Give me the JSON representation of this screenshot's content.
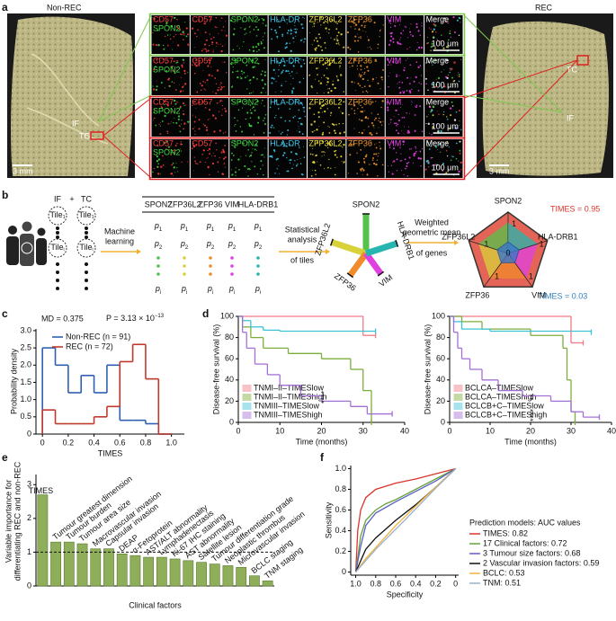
{
  "panel_labels": [
    "a",
    "b",
    "c",
    "d",
    "e",
    "f"
  ],
  "panel_a": {
    "left_title": "Non-REC",
    "right_title": "REC",
    "left_regions": [
      "IF",
      "TC"
    ],
    "right_regions": [
      "TC",
      "IF"
    ],
    "tissue_scale": "3 mm",
    "merged_label": [
      "CD57 -",
      "SPON2"
    ],
    "column_labels": [
      "CD57",
      "SPON2",
      "HLA-DR",
      "ZFP36L2",
      "ZFP36",
      "VIM",
      "Merge"
    ],
    "image_scale": "100 μm"
  },
  "panel_b": {
    "regions": [
      "IF",
      "TC"
    ],
    "plus": "+",
    "tile_base": "Tile",
    "tile_subs": [
      "1",
      "i"
    ],
    "step_labels": [
      [
        "Machine",
        "learning"
      ],
      [
        "Statistical",
        "analysis",
        "of tiles"
      ],
      [
        "Weighted",
        "geometric mean",
        "of genes"
      ]
    ],
    "genes": [
      "SPON2",
      "ZFP36L2",
      "ZFP36",
      "VIM",
      "HLA-DRB1"
    ],
    "row_base": "p",
    "row_subs": [
      "1",
      "2",
      "i"
    ],
    "radar_labels": [
      "TIMES = 0.95",
      "TIMES = 0.03"
    ],
    "radar_ticks": [
      "1",
      "0"
    ]
  },
  "chart_data": [
    {
      "type": "histogram",
      "annotations": [
        "MD = 0.375"
      ],
      "p_value": {
        "text": "P = 3.13 × 10",
        "exponent": "−13"
      },
      "bins": [
        0,
        0.1,
        0.2,
        0.3,
        0.4,
        0.5,
        0.6,
        0.7,
        0.8,
        0.9,
        1.0
      ],
      "series": [
        {
          "name": "Non-REC (n = 91)",
          "color": "#2f5fb3",
          "values": [
            2.5,
            2.0,
            1.2,
            1.7,
            1.2,
            2.0,
            0.4,
            0.4,
            0.3,
            0
          ]
        },
        {
          "name": "REC (n = 72)",
          "color": "#c0392b",
          "values": [
            0.7,
            0.3,
            0.3,
            0.3,
            0.5,
            0.8,
            2.1,
            2.6,
            1.6,
            0
          ]
        }
      ],
      "xlabel": "TIMES",
      "ylabel": "Probability density",
      "xlim": [
        -0.05,
        1.1
      ],
      "ylim": [
        0,
        3.05
      ],
      "xticks": [
        0,
        0.2,
        0.4,
        0.6,
        0.8,
        {
          "value": 1,
          "label": "1.0"
        }
      ],
      "yticks": [
        0,
        0.5,
        {
          "value": 1,
          "label": "1.0"
        },
        1.5,
        {
          "value": 2,
          "label": "2.0"
        },
        2.5,
        {
          "value": 3,
          "label": "3.0"
        }
      ]
    },
    {
      "type": "survival",
      "xlabel": "Time (months)",
      "ylabel": "Disease-free survival (%)",
      "annotations": [
        "****"
      ],
      "xlim": [
        0,
        40
      ],
      "ylim": [
        0,
        100
      ],
      "xticks": [
        0,
        10,
        20,
        30,
        40
      ],
      "yticks": [
        0,
        20,
        40,
        60,
        80,
        100
      ],
      "series": [
        {
          "name": "TNMI–II–TIMESlow",
          "color": "#f07a85",
          "x": [
            0,
            30,
            33
          ],
          "values": [
            100,
            82,
            82
          ]
        },
        {
          "name": "TNMI–II–TIMEShigh",
          "color": "#7cae3c",
          "x": [
            0,
            1,
            3,
            6,
            12,
            20,
            27,
            30,
            32
          ],
          "values": [
            100,
            90,
            80,
            70,
            65,
            60,
            50,
            30,
            0
          ]
        },
        {
          "name": "TNMIII–TIMESlow",
          "color": "#3cc3d3",
          "x": [
            0,
            1,
            3,
            6,
            10,
            33
          ],
          "values": [
            100,
            96,
            90,
            87,
            86,
            86
          ]
        },
        {
          "name": "TNMIII–TIMEShigh",
          "color": "#a56fd8",
          "x": [
            0,
            1,
            2,
            4,
            7,
            10,
            15,
            20,
            27,
            31,
            37
          ],
          "values": [
            100,
            85,
            70,
            55,
            45,
            35,
            25,
            20,
            15,
            8,
            8
          ]
        }
      ]
    },
    {
      "type": "survival",
      "xlabel": "Time (months)",
      "ylabel": "Disease-free survival (%)",
      "annotations": [
        "**",
        "****"
      ],
      "xlim": [
        0,
        40
      ],
      "ylim": [
        0,
        100
      ],
      "xticks": [
        0,
        10,
        20,
        30,
        40
      ],
      "yticks": [
        0,
        20,
        40,
        60,
        80,
        100
      ],
      "series": [
        {
          "name": "BCLCA–TIMESlow",
          "color": "#f07a85",
          "x": [
            0,
            30,
            33
          ],
          "values": [
            100,
            75,
            75
          ]
        },
        {
          "name": "BCLCA–TIMEShigh",
          "color": "#7cae3c",
          "x": [
            0,
            3,
            8,
            20,
            28,
            29,
            30,
            31
          ],
          "values": [
            100,
            95,
            88,
            82,
            70,
            40,
            10,
            0
          ]
        },
        {
          "name": "BCLCB+C–TIMESlow",
          "color": "#3cc3d3",
          "x": [
            0,
            1,
            3,
            10,
            35
          ],
          "values": [
            100,
            95,
            88,
            86,
            85
          ]
        },
        {
          "name": "BCLCB+C–TIMEShigh",
          "color": "#a56fd8",
          "x": [
            0,
            1,
            2,
            3,
            5,
            8,
            12,
            18,
            25,
            30,
            33,
            37
          ],
          "values": [
            100,
            85,
            70,
            60,
            50,
            40,
            30,
            25,
            20,
            10,
            5,
            5
          ]
        }
      ]
    },
    {
      "type": "bar",
      "ylabel": [
        "Variable importance for",
        "differentiating REC and non-REC"
      ],
      "xlabel": "Clinical factors",
      "color": "#8fae5a",
      "reference_line": 1,
      "categories": [
        "TIMES",
        "Tumour greatest dimension",
        "Tumour burden",
        "Tumour area size",
        "Macrovascular invasion",
        "Capsular invasion",
        "DEAP",
        "α-Fetoprotein",
        "AST/ALT abnormality",
        "Lymphadenectasis",
        "Ki-67 IHC staining",
        "AST abnormality",
        "Satellite lesion",
        "Tumour differentiation grade",
        "Neoplastic thrombus",
        "Microvascular invasion",
        "BCLC staging",
        "TNM staging"
      ],
      "values": [
        2.7,
        1.3,
        1.3,
        1.25,
        1.1,
        1.1,
        0.95,
        0.9,
        0.85,
        0.85,
        0.8,
        0.75,
        0.7,
        0.65,
        0.6,
        0.55,
        0.3,
        0.15
      ],
      "ylim": [
        0,
        3.3
      ],
      "yticks": [
        0,
        1,
        2,
        3
      ]
    },
    {
      "type": "line",
      "xlabel": "Specificity",
      "ylabel": "Sensitivity",
      "legend_title": "Prediction models: AUC values",
      "xlim": [
        1.05,
        -0.03
      ],
      "ylim": [
        -0.03,
        1.03
      ],
      "xticks": [
        {
          "value": 1,
          "label": "1.0"
        },
        0.8,
        0.6,
        0.4,
        0.2,
        0
      ],
      "yticks": [
        0,
        0.2,
        0.4,
        0.6,
        0.8,
        {
          "value": 1,
          "label": "1.0"
        }
      ],
      "series": [
        {
          "name": "TIMES: 0.82",
          "color": "#d9342b",
          "x": [
            1,
            0.98,
            0.95,
            0.9,
            0.8,
            0.6,
            0.4,
            0.2,
            0
          ],
          "values": [
            0,
            0.4,
            0.6,
            0.72,
            0.8,
            0.86,
            0.9,
            0.95,
            1
          ]
        },
        {
          "name": "17 Clinical factors: 0.72",
          "color": "#66a33a",
          "x": [
            1,
            0.95,
            0.9,
            0.8,
            0.7,
            0.6,
            0.4,
            0.2,
            0
          ],
          "values": [
            0,
            0.35,
            0.5,
            0.6,
            0.66,
            0.7,
            0.8,
            0.9,
            1
          ]
        },
        {
          "name": "3 Tumour size factors: 0.68",
          "color": "#5a5fc8",
          "x": [
            1,
            0.95,
            0.9,
            0.8,
            0.6,
            0.4,
            0.2,
            0
          ],
          "values": [
            0,
            0.25,
            0.45,
            0.57,
            0.68,
            0.78,
            0.88,
            1
          ]
        },
        {
          "name": "2 Vascular invasion factors: 0.59",
          "color": "#111111",
          "x": [
            1,
            0.9,
            0.8,
            0.6,
            0.4,
            0.2,
            0
          ],
          "values": [
            0,
            0.22,
            0.33,
            0.5,
            0.65,
            0.82,
            1
          ]
        },
        {
          "name": "BCLC: 0.53",
          "color": "#f0b23c",
          "x": [
            1,
            0.9,
            0.6,
            0.3,
            0
          ],
          "values": [
            0,
            0.13,
            0.45,
            0.73,
            1
          ]
        },
        {
          "name": "TNM: 0.51",
          "color": "#9ab0c8",
          "x": [
            1,
            0.8,
            0.5,
            0.2,
            0
          ],
          "values": [
            0,
            0.22,
            0.51,
            0.81,
            1
          ]
        }
      ]
    }
  ]
}
